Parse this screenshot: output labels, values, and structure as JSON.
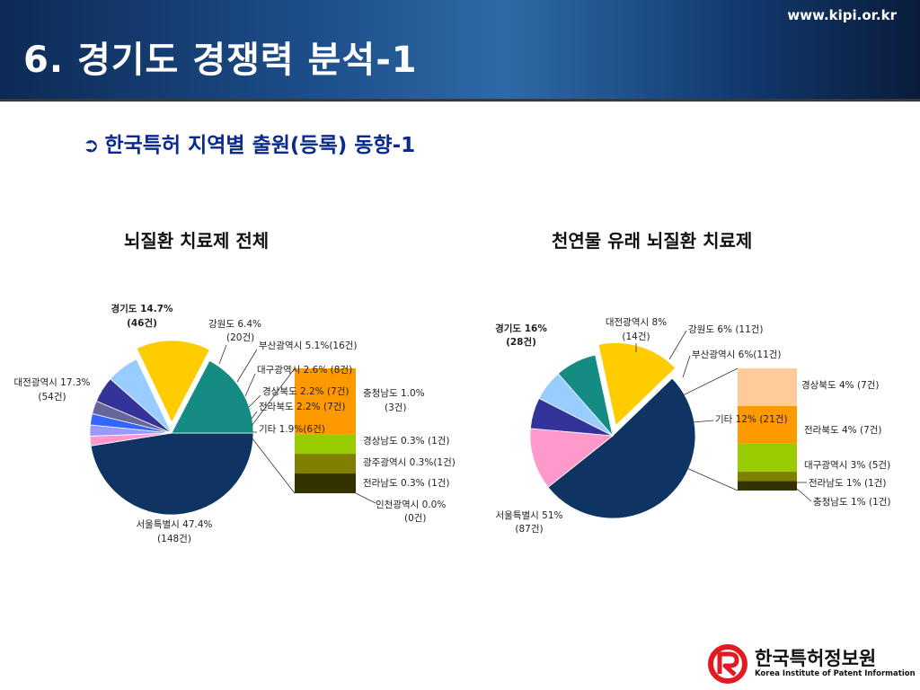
{
  "header": {
    "title": "6. 경기도 경쟁력 분석-1",
    "website": "www.kipi.or.kr"
  },
  "subtitle": {
    "arrow": "➲",
    "text": "한국특허 지역별 출원(등록) 동향-1"
  },
  "logo": {
    "name_ko": "한국특허정보원",
    "name_en": "Korea Institute of Patent Information"
  },
  "colors": {
    "seoul": "#0e3463",
    "gyeonggi": "#ffcc00",
    "daejeon": "#148c84",
    "gangwon": "#99ccff",
    "busan": "#333399",
    "daegu": "#666699",
    "gyeongbuk": "#3366ff",
    "jeonbuk": "#9999ff",
    "gita": "#ff99cc",
    "chungnam": "#ff9900",
    "gyeongnam": "#99cc00",
    "gwangju": "#808000",
    "jeonnam": "#333300",
    "incheon": "#663300",
    "peach": "#ffcc99"
  },
  "chart_data": [
    {
      "type": "pie",
      "title": "뇌질환 치료제 전체",
      "slices": [
        {
          "key": "seoul",
          "label": "서울특별시 47.4%",
          "count": "(148건)",
          "value": 47.4
        },
        {
          "key": "gita",
          "label": "기타 1.9%(6건)",
          "count": "",
          "value": 1.9
        },
        {
          "key": "jeonbuk",
          "label": "전라북도 2.2% (7건)",
          "count": "",
          "value": 2.2
        },
        {
          "key": "gyeongbuk",
          "label": "경상북도 2.2% (7건)",
          "count": "",
          "value": 2.2
        },
        {
          "key": "daegu",
          "label": "대구광역시 2.6% (8건)",
          "count": "",
          "value": 2.6
        },
        {
          "key": "busan",
          "label": "부산광역시 5.1%(16건)",
          "count": "",
          "value": 5.1
        },
        {
          "key": "gangwon",
          "label": "강원도 6.4%",
          "count": "(20건)",
          "value": 6.4
        },
        {
          "key": "gyeonggi",
          "label": "경기도 14.7%",
          "count": "(46건)",
          "value": 14.7,
          "exploded": true
        },
        {
          "key": "daejeon",
          "label": "대전광역시 17.3%",
          "count": "(54건)",
          "value": 17.3
        }
      ],
      "breakdown_of": "기타 1.9%(6건)",
      "breakdown": [
        {
          "key": "chungnam",
          "label": "충청남도 1.0%",
          "count": "(3건)",
          "value": 1.0
        },
        {
          "key": "gyeongnam",
          "label": "경상남도 0.3% (1건)",
          "count": "",
          "value": 0.3
        },
        {
          "key": "gwangju",
          "label": "광주광역시 0.3%(1건)",
          "count": "",
          "value": 0.3
        },
        {
          "key": "jeonnam",
          "label": "전라남도 0.3% (1건)",
          "count": "",
          "value": 0.3
        },
        {
          "key": "incheon",
          "label": "인천광역시 0.0%",
          "count": "(0건)",
          "value": 0.0
        }
      ]
    },
    {
      "type": "pie",
      "title": "천연물 유래 뇌질환 치료제",
      "slices": [
        {
          "key": "seoul",
          "label": "서울특별시 51%",
          "count": "(87건)",
          "value": 51
        },
        {
          "key": "gita",
          "label": "기타 12% (21건)",
          "count": "",
          "value": 12
        },
        {
          "key": "busan",
          "label": "부산광역시 6%(11건)",
          "count": "",
          "value": 6
        },
        {
          "key": "gangwon",
          "label": "강원도 6% (11건)",
          "count": "",
          "value": 6
        },
        {
          "key": "daejeon",
          "label": "대전광역시 8%",
          "count": "(14건)",
          "value": 8
        },
        {
          "key": "gyeonggi",
          "label": "경기도 16%",
          "count": "(28건)",
          "value": 16,
          "exploded": true
        }
      ],
      "breakdown_of": "기타 12% (21건)",
      "breakdown": [
        {
          "key": "peach",
          "label": "경상북도 4% (7건)",
          "count": "",
          "value": 4
        },
        {
          "key": "chungnam",
          "label": "전라북도 4% (7건)",
          "count": "",
          "value": 4
        },
        {
          "key": "gyeongnam",
          "label": "대구광역시 3% (5건)",
          "count": "",
          "value": 3
        },
        {
          "key": "gwangju",
          "label": "전라남도 1% (1건)",
          "count": "",
          "value": 1
        },
        {
          "key": "jeonnam",
          "label": "충청남도 1% (1건)",
          "count": "",
          "value": 1
        }
      ]
    }
  ]
}
